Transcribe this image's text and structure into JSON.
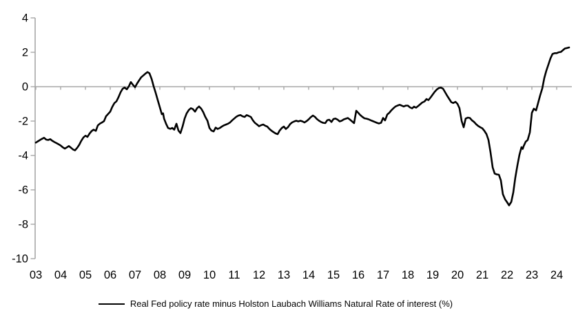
{
  "chart_data": {
    "type": "line",
    "title": "",
    "grid": false,
    "legend_position": "bottom-center",
    "background_color": "#ffffff",
    "axis_color": "#a6a6a6",
    "label_color": "#000000",
    "xlim": [
      2003.0,
      2024.6
    ],
    "ylim": [
      -10,
      4
    ],
    "x_axis": {
      "tick_labels": [
        "03",
        "04",
        "05",
        "06",
        "07",
        "08",
        "09",
        "10",
        "11",
        "12",
        "13",
        "14",
        "15",
        "16",
        "17",
        "18",
        "19",
        "20",
        "21",
        "22",
        "23",
        "24"
      ],
      "axis_position_value": 0
    },
    "y_axis": {
      "tick_values": [
        4,
        2,
        0,
        -2,
        -4,
        -6,
        -8,
        -10
      ]
    },
    "series": [
      {
        "name": "Real Fed policy rate minus Holston Laubach Williams Natural Rate of interest (%)",
        "color": "#000000",
        "points": [
          [
            2003.0,
            -3.25
          ],
          [
            2003.08,
            -3.18
          ],
          [
            2003.17,
            -3.1
          ],
          [
            2003.25,
            -3.03
          ],
          [
            2003.33,
            -2.97
          ],
          [
            2003.42,
            -3.08
          ],
          [
            2003.5,
            -3.1
          ],
          [
            2003.58,
            -3.05
          ],
          [
            2003.67,
            -3.15
          ],
          [
            2003.75,
            -3.22
          ],
          [
            2003.83,
            -3.28
          ],
          [
            2003.92,
            -3.35
          ],
          [
            2004.0,
            -3.42
          ],
          [
            2004.08,
            -3.52
          ],
          [
            2004.17,
            -3.6
          ],
          [
            2004.25,
            -3.53
          ],
          [
            2004.33,
            -3.45
          ],
          [
            2004.42,
            -3.55
          ],
          [
            2004.5,
            -3.65
          ],
          [
            2004.58,
            -3.7
          ],
          [
            2004.67,
            -3.55
          ],
          [
            2004.75,
            -3.38
          ],
          [
            2004.83,
            -3.15
          ],
          [
            2004.92,
            -2.95
          ],
          [
            2005.0,
            -2.85
          ],
          [
            2005.08,
            -2.92
          ],
          [
            2005.17,
            -2.72
          ],
          [
            2005.25,
            -2.58
          ],
          [
            2005.33,
            -2.5
          ],
          [
            2005.42,
            -2.57
          ],
          [
            2005.5,
            -2.25
          ],
          [
            2005.58,
            -2.15
          ],
          [
            2005.67,
            -2.08
          ],
          [
            2005.75,
            -2.0
          ],
          [
            2005.83,
            -1.72
          ],
          [
            2005.92,
            -1.58
          ],
          [
            2006.0,
            -1.45
          ],
          [
            2006.08,
            -1.18
          ],
          [
            2006.17,
            -0.95
          ],
          [
            2006.25,
            -0.85
          ],
          [
            2006.33,
            -0.62
          ],
          [
            2006.42,
            -0.32
          ],
          [
            2006.5,
            -0.12
          ],
          [
            2006.58,
            -0.05
          ],
          [
            2006.67,
            -0.15
          ],
          [
            2006.75,
            0.02
          ],
          [
            2006.83,
            0.27
          ],
          [
            2006.92,
            0.1
          ],
          [
            2007.0,
            -0.03
          ],
          [
            2007.08,
            0.18
          ],
          [
            2007.17,
            0.38
          ],
          [
            2007.25,
            0.55
          ],
          [
            2007.33,
            0.65
          ],
          [
            2007.42,
            0.76
          ],
          [
            2007.5,
            0.85
          ],
          [
            2007.58,
            0.78
          ],
          [
            2007.67,
            0.45
          ],
          [
            2007.75,
            0.02
          ],
          [
            2007.83,
            -0.35
          ],
          [
            2007.92,
            -0.8
          ],
          [
            2008.0,
            -1.2
          ],
          [
            2008.08,
            -1.6
          ],
          [
            2008.13,
            -1.55
          ],
          [
            2008.17,
            -1.85
          ],
          [
            2008.25,
            -2.15
          ],
          [
            2008.33,
            -2.4
          ],
          [
            2008.42,
            -2.45
          ],
          [
            2008.5,
            -2.4
          ],
          [
            2008.58,
            -2.5
          ],
          [
            2008.67,
            -2.15
          ],
          [
            2008.75,
            -2.55
          ],
          [
            2008.83,
            -2.7
          ],
          [
            2008.92,
            -2.3
          ],
          [
            2009.0,
            -1.85
          ],
          [
            2009.08,
            -1.55
          ],
          [
            2009.17,
            -1.35
          ],
          [
            2009.25,
            -1.25
          ],
          [
            2009.33,
            -1.3
          ],
          [
            2009.42,
            -1.45
          ],
          [
            2009.5,
            -1.25
          ],
          [
            2009.58,
            -1.15
          ],
          [
            2009.67,
            -1.28
          ],
          [
            2009.75,
            -1.48
          ],
          [
            2009.83,
            -1.75
          ],
          [
            2009.92,
            -1.98
          ],
          [
            2010.0,
            -2.4
          ],
          [
            2010.08,
            -2.55
          ],
          [
            2010.17,
            -2.6
          ],
          [
            2010.25,
            -2.38
          ],
          [
            2010.33,
            -2.46
          ],
          [
            2010.42,
            -2.4
          ],
          [
            2010.5,
            -2.32
          ],
          [
            2010.58,
            -2.25
          ],
          [
            2010.67,
            -2.2
          ],
          [
            2010.75,
            -2.15
          ],
          [
            2010.83,
            -2.08
          ],
          [
            2010.92,
            -1.95
          ],
          [
            2011.0,
            -1.85
          ],
          [
            2011.08,
            -1.75
          ],
          [
            2011.17,
            -1.68
          ],
          [
            2011.25,
            -1.65
          ],
          [
            2011.33,
            -1.72
          ],
          [
            2011.42,
            -1.76
          ],
          [
            2011.5,
            -1.65
          ],
          [
            2011.58,
            -1.7
          ],
          [
            2011.67,
            -1.76
          ],
          [
            2011.75,
            -1.95
          ],
          [
            2011.83,
            -2.1
          ],
          [
            2011.92,
            -2.2
          ],
          [
            2012.0,
            -2.3
          ],
          [
            2012.08,
            -2.24
          ],
          [
            2012.17,
            -2.2
          ],
          [
            2012.25,
            -2.27
          ],
          [
            2012.33,
            -2.32
          ],
          [
            2012.42,
            -2.46
          ],
          [
            2012.5,
            -2.56
          ],
          [
            2012.58,
            -2.64
          ],
          [
            2012.67,
            -2.72
          ],
          [
            2012.75,
            -2.76
          ],
          [
            2012.83,
            -2.55
          ],
          [
            2012.92,
            -2.4
          ],
          [
            2013.0,
            -2.32
          ],
          [
            2013.08,
            -2.46
          ],
          [
            2013.17,
            -2.35
          ],
          [
            2013.25,
            -2.18
          ],
          [
            2013.33,
            -2.08
          ],
          [
            2013.42,
            -2.02
          ],
          [
            2013.5,
            -1.98
          ],
          [
            2013.58,
            -2.02
          ],
          [
            2013.67,
            -1.98
          ],
          [
            2013.75,
            -2.02
          ],
          [
            2013.83,
            -2.08
          ],
          [
            2013.92,
            -2.0
          ],
          [
            2014.0,
            -1.9
          ],
          [
            2014.08,
            -1.78
          ],
          [
            2014.17,
            -1.68
          ],
          [
            2014.25,
            -1.75
          ],
          [
            2014.33,
            -1.88
          ],
          [
            2014.42,
            -1.98
          ],
          [
            2014.5,
            -2.05
          ],
          [
            2014.58,
            -2.1
          ],
          [
            2014.67,
            -2.12
          ],
          [
            2014.75,
            -1.95
          ],
          [
            2014.83,
            -1.92
          ],
          [
            2014.92,
            -2.05
          ],
          [
            2015.0,
            -1.88
          ],
          [
            2015.08,
            -1.85
          ],
          [
            2015.17,
            -1.92
          ],
          [
            2015.25,
            -2.02
          ],
          [
            2015.33,
            -1.98
          ],
          [
            2015.42,
            -1.9
          ],
          [
            2015.5,
            -1.86
          ],
          [
            2015.58,
            -1.82
          ],
          [
            2015.67,
            -1.92
          ],
          [
            2015.75,
            -2.02
          ],
          [
            2015.83,
            -2.12
          ],
          [
            2015.92,
            -1.4
          ],
          [
            2016.0,
            -1.52
          ],
          [
            2016.08,
            -1.65
          ],
          [
            2016.17,
            -1.76
          ],
          [
            2016.25,
            -1.84
          ],
          [
            2016.33,
            -1.86
          ],
          [
            2016.42,
            -1.9
          ],
          [
            2016.5,
            -1.95
          ],
          [
            2016.58,
            -2.0
          ],
          [
            2016.67,
            -2.05
          ],
          [
            2016.75,
            -2.1
          ],
          [
            2016.83,
            -2.14
          ],
          [
            2016.92,
            -2.1
          ],
          [
            2017.0,
            -1.82
          ],
          [
            2017.08,
            -1.96
          ],
          [
            2017.17,
            -1.62
          ],
          [
            2017.25,
            -1.52
          ],
          [
            2017.33,
            -1.38
          ],
          [
            2017.42,
            -1.25
          ],
          [
            2017.5,
            -1.15
          ],
          [
            2017.58,
            -1.1
          ],
          [
            2017.67,
            -1.05
          ],
          [
            2017.75,
            -1.1
          ],
          [
            2017.83,
            -1.15
          ],
          [
            2017.92,
            -1.1
          ],
          [
            2018.0,
            -1.1
          ],
          [
            2018.08,
            -1.2
          ],
          [
            2018.17,
            -1.26
          ],
          [
            2018.25,
            -1.16
          ],
          [
            2018.33,
            -1.22
          ],
          [
            2018.42,
            -1.12
          ],
          [
            2018.5,
            -1.02
          ],
          [
            2018.58,
            -0.92
          ],
          [
            2018.67,
            -0.86
          ],
          [
            2018.75,
            -0.72
          ],
          [
            2018.83,
            -0.78
          ],
          [
            2018.92,
            -0.62
          ],
          [
            2019.0,
            -0.46
          ],
          [
            2019.08,
            -0.3
          ],
          [
            2019.17,
            -0.16
          ],
          [
            2019.25,
            -0.08
          ],
          [
            2019.33,
            -0.05
          ],
          [
            2019.42,
            -0.12
          ],
          [
            2019.5,
            -0.32
          ],
          [
            2019.58,
            -0.52
          ],
          [
            2019.67,
            -0.72
          ],
          [
            2019.75,
            -0.9
          ],
          [
            2019.83,
            -0.95
          ],
          [
            2019.92,
            -0.88
          ],
          [
            2020.0,
            -1.0
          ],
          [
            2020.08,
            -1.25
          ],
          [
            2020.17,
            -2.0
          ],
          [
            2020.25,
            -2.36
          ],
          [
            2020.33,
            -1.85
          ],
          [
            2020.42,
            -1.8
          ],
          [
            2020.5,
            -1.82
          ],
          [
            2020.58,
            -1.95
          ],
          [
            2020.67,
            -2.05
          ],
          [
            2020.75,
            -2.18
          ],
          [
            2020.83,
            -2.28
          ],
          [
            2020.92,
            -2.36
          ],
          [
            2021.0,
            -2.42
          ],
          [
            2021.08,
            -2.56
          ],
          [
            2021.17,
            -2.76
          ],
          [
            2021.25,
            -3.1
          ],
          [
            2021.33,
            -3.8
          ],
          [
            2021.42,
            -4.7
          ],
          [
            2021.5,
            -5.05
          ],
          [
            2021.58,
            -5.1
          ],
          [
            2021.67,
            -5.12
          ],
          [
            2021.75,
            -5.45
          ],
          [
            2021.83,
            -6.25
          ],
          [
            2021.92,
            -6.55
          ],
          [
            2022.0,
            -6.72
          ],
          [
            2022.08,
            -6.9
          ],
          [
            2022.17,
            -6.7
          ],
          [
            2022.25,
            -6.15
          ],
          [
            2022.33,
            -5.3
          ],
          [
            2022.42,
            -4.55
          ],
          [
            2022.5,
            -3.95
          ],
          [
            2022.58,
            -3.52
          ],
          [
            2022.63,
            -3.62
          ],
          [
            2022.67,
            -3.45
          ],
          [
            2022.75,
            -3.2
          ],
          [
            2022.83,
            -3.1
          ],
          [
            2022.92,
            -2.65
          ],
          [
            2023.0,
            -1.52
          ],
          [
            2023.08,
            -1.28
          ],
          [
            2023.17,
            -1.38
          ],
          [
            2023.25,
            -0.95
          ],
          [
            2023.33,
            -0.52
          ],
          [
            2023.42,
            -0.1
          ],
          [
            2023.5,
            0.5
          ],
          [
            2023.58,
            0.92
          ],
          [
            2023.67,
            1.3
          ],
          [
            2023.75,
            1.65
          ],
          [
            2023.83,
            1.9
          ],
          [
            2023.92,
            1.95
          ],
          [
            2024.0,
            1.95
          ],
          [
            2024.08,
            2.0
          ],
          [
            2024.17,
            2.02
          ],
          [
            2024.25,
            2.12
          ],
          [
            2024.33,
            2.22
          ],
          [
            2024.42,
            2.25
          ],
          [
            2024.5,
            2.28
          ]
        ]
      }
    ]
  },
  "legend": {
    "label": "Real Fed policy rate minus Holston Laubach Williams Natural Rate of interest (%)"
  }
}
